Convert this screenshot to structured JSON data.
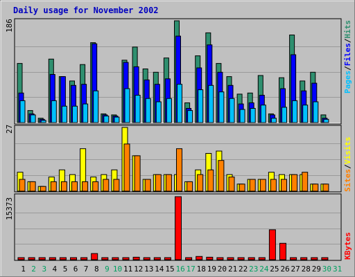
{
  "title": "Daily usage for November 2002",
  "colors": {
    "background": "#c0c0c0",
    "title": "#0000c0",
    "hits": "#2f8f6f",
    "files": "#0000ff",
    "pages": "#00c0ff",
    "visits": "#ffff00",
    "sites": "#ff8000",
    "kbytes": "#ff0000",
    "weekend_label": "#00a060",
    "weekday_label": "#000000"
  },
  "chart_data": [
    {
      "type": "bar",
      "name": "requests",
      "ymax_label": "186",
      "ylim": [
        0,
        186
      ],
      "legend": [
        "Pages",
        "Files",
        "Hits"
      ],
      "categories": [
        "1",
        "2",
        "3",
        "4",
        "5",
        "6",
        "7",
        "8",
        "9",
        "10",
        "11",
        "12",
        "13",
        "14",
        "15",
        "16",
        "17",
        "18",
        "19",
        "20",
        "21",
        "22",
        "23",
        "24",
        "25",
        "26",
        "27",
        "28",
        "29",
        "30",
        "31"
      ],
      "series": [
        {
          "name": "Hits",
          "values": [
            108,
            22,
            8,
            116,
            84,
            76,
            106,
            146,
            16,
            14,
            114,
            138,
            98,
            92,
            118,
            186,
            36,
            122,
            164,
            108,
            84,
            52,
            54,
            86,
            16,
            82,
            160,
            76,
            92,
            14,
            0
          ]
        },
        {
          "name": "Files",
          "values": [
            54,
            16,
            6,
            88,
            84,
            68,
            70,
            144,
            14,
            12,
            110,
            102,
            78,
            70,
            80,
            158,
            26,
            100,
            142,
            92,
            68,
            34,
            36,
            50,
            14,
            62,
            124,
            58,
            72,
            8,
            0
          ]
        },
        {
          "name": "Pages",
          "values": [
            40,
            14,
            4,
            40,
            30,
            30,
            34,
            58,
            12,
            10,
            62,
            50,
            44,
            38,
            44,
            70,
            22,
            60,
            68,
            56,
            44,
            24,
            26,
            32,
            8,
            28,
            40,
            32,
            38,
            6,
            0
          ]
        }
      ]
    },
    {
      "type": "bar",
      "name": "visits-sites",
      "ymax_label": "27",
      "ylim": [
        0,
        27
      ],
      "legend": [
        "Sites",
        "Visits"
      ],
      "categories": [
        "1",
        "2",
        "3",
        "4",
        "5",
        "6",
        "7",
        "8",
        "9",
        "10",
        "11",
        "12",
        "13",
        "14",
        "15",
        "16",
        "17",
        "18",
        "19",
        "20",
        "21",
        "22",
        "23",
        "24",
        "25",
        "26",
        "27",
        "28",
        "29",
        "30",
        "31"
      ],
      "series": [
        {
          "name": "Visits",
          "values": [
            8,
            4,
            2,
            6,
            9,
            7,
            18,
            6,
            7,
            9,
            27,
            15,
            5,
            7,
            7,
            7,
            4,
            9,
            16,
            17,
            7,
            3,
            5,
            5,
            8,
            7,
            7,
            7,
            3,
            3,
            0
          ]
        },
        {
          "name": "Sites",
          "values": [
            5,
            4,
            2,
            4,
            4,
            4,
            4,
            4,
            5,
            5,
            20,
            15,
            5,
            7,
            7,
            18,
            4,
            7,
            9,
            13,
            6,
            3,
            5,
            5,
            5,
            5,
            7,
            8,
            3,
            3,
            0
          ]
        }
      ]
    },
    {
      "type": "bar",
      "name": "kbytes",
      "ymax_label": "15373",
      "ylim": [
        0,
        15373
      ],
      "legend": [
        "KBytes"
      ],
      "categories": [
        "1",
        "2",
        "3",
        "4",
        "5",
        "6",
        "7",
        "8",
        "9",
        "10",
        "11",
        "12",
        "13",
        "14",
        "15",
        "16",
        "17",
        "18",
        "19",
        "20",
        "21",
        "22",
        "23",
        "24",
        "25",
        "26",
        "27",
        "28",
        "29",
        "30",
        "31"
      ],
      "series": [
        {
          "name": "KBytes",
          "values": [
            400,
            300,
            200,
            500,
            500,
            500,
            400,
            1500,
            200,
            200,
            500,
            600,
            500,
            400,
            500,
            15373,
            400,
            800,
            600,
            400,
            400,
            300,
            300,
            300,
            7300,
            4000,
            400,
            300,
            300,
            200,
            0
          ]
        }
      ]
    }
  ],
  "xaxis": {
    "labels": [
      "1",
      "2",
      "3",
      "4",
      "5",
      "6",
      "7",
      "8",
      "9",
      "10",
      "11",
      "12",
      "13",
      "14",
      "15",
      "16",
      "17",
      "18",
      "19",
      "20",
      "21",
      "22",
      "23",
      "24",
      "25",
      "26",
      "27",
      "28",
      "29",
      "30",
      "31"
    ],
    "weekend": [
      false,
      true,
      true,
      false,
      false,
      false,
      false,
      false,
      true,
      true,
      false,
      false,
      false,
      false,
      false,
      true,
      true,
      false,
      false,
      false,
      false,
      false,
      true,
      true,
      false,
      false,
      false,
      false,
      false,
      true,
      true
    ]
  }
}
